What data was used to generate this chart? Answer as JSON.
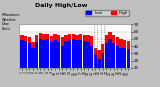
{
  "title": "Milwaukee Weather Dew Point",
  "subtitle": "Daily High/Low",
  "bg_color": "#c0c0c0",
  "plot_bg_color": "#ffffff",
  "bar_color_high": "#ff0000",
  "bar_color_low": "#0000ff",
  "legend_high": "High",
  "legend_low": "Low",
  "grid_color": "#aaaaaa",
  "categories": [
    "1",
    "2",
    "3",
    "4",
    "5",
    "6",
    "7",
    "8",
    "9",
    "10",
    "11",
    "12",
    "13",
    "14",
    "15",
    "16",
    "17",
    "18",
    "19",
    "20",
    "21",
    "22",
    "23",
    "24",
    "25",
    "26",
    "27",
    "28",
    "29",
    "30"
  ],
  "highs": [
    55,
    54,
    52,
    46,
    55,
    58,
    57,
    57,
    54,
    57,
    55,
    53,
    56,
    57,
    57,
    56,
    57,
    56,
    55,
    54,
    38,
    35,
    43,
    55,
    60,
    55,
    52,
    50,
    49,
    47
  ],
  "lows": [
    48,
    47,
    44,
    38,
    46,
    50,
    49,
    50,
    46,
    48,
    46,
    40,
    47,
    49,
    50,
    48,
    49,
    47,
    46,
    40,
    28,
    22,
    30,
    44,
    50,
    44,
    40,
    38,
    38,
    36
  ],
  "ylim_min": 10,
  "ylim_max": 70,
  "yticks": [
    10,
    20,
    30,
    40,
    50,
    60,
    70
  ],
  "dotted_lines": [
    19.5,
    20.5,
    21.5,
    22.5
  ],
  "title_fontsize": 4.5,
  "tick_fontsize": 3.0,
  "legend_fontsize": 3.0
}
